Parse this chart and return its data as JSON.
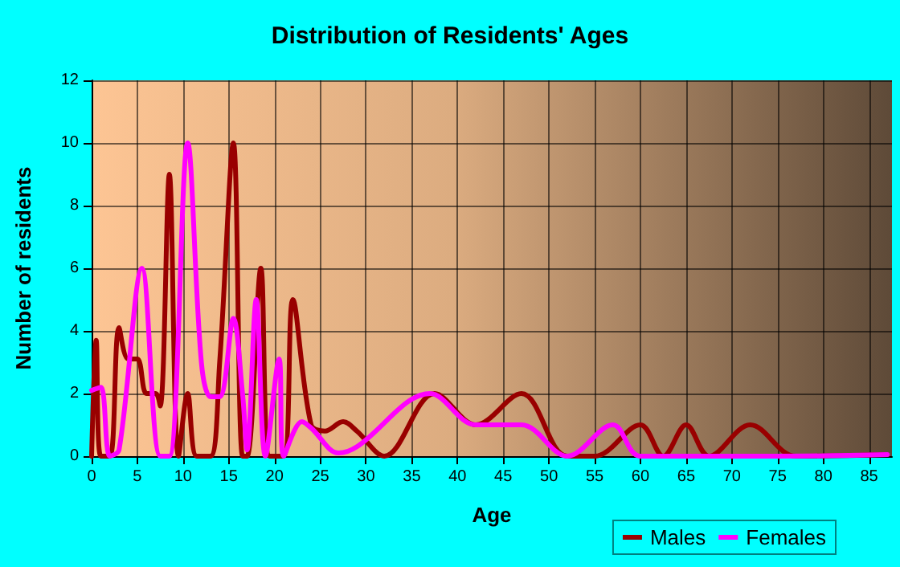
{
  "chart_data": {
    "type": "line",
    "title": "Distribution of Residents' Ages",
    "xlabel": "Age",
    "ylabel": "Number of residents",
    "xlim": [
      0,
      87.5
    ],
    "xticks": [
      0,
      5,
      10,
      15,
      20,
      25,
      30,
      35,
      40,
      45,
      50,
      55,
      60,
      65,
      70,
      75,
      80,
      85
    ],
    "ylim": [
      0,
      12
    ],
    "yticks": [
      0,
      2,
      4,
      6,
      8,
      10,
      12
    ],
    "grid": true,
    "legend": "bottom",
    "marker": "none",
    "line_style": "solid",
    "series": [
      {
        "name": "Males",
        "color": "#990000",
        "x": [
          0,
          0.5,
          1,
          2,
          3,
          4,
          5,
          6,
          7,
          7.5,
          8.5,
          9.5,
          10.5,
          11.5,
          13,
          14,
          15.5,
          16.5,
          17,
          18.5,
          19.5,
          21,
          22,
          24,
          25.5,
          27.5,
          29,
          32,
          37.5,
          42,
          47,
          52,
          55,
          60,
          62.5,
          65,
          67.5,
          72,
          77,
          87
        ],
        "values": [
          0,
          3.7,
          0,
          0,
          4.1,
          3.1,
          3.1,
          2,
          2,
          1.6,
          9,
          0,
          2,
          0,
          0,
          3,
          10,
          0,
          0,
          6,
          0,
          0,
          5,
          1,
          0.8,
          1.1,
          0.8,
          0,
          2,
          1,
          2,
          0,
          0,
          1,
          0,
          1,
          0,
          1,
          0,
          0.05
        ]
      },
      {
        "name": "Females",
        "color": "#ff00ff",
        "x": [
          0,
          1,
          2,
          3,
          5.5,
          7.5,
          8.5,
          10.5,
          12,
          13,
          14,
          15.5,
          16.5,
          17,
          18,
          19,
          20.5,
          21,
          23,
          24,
          27,
          29,
          37,
          42,
          47,
          52,
          57,
          60,
          75,
          87
        ],
        "values": [
          2.1,
          2.2,
          0,
          0.2,
          6,
          0,
          0,
          10,
          3,
          1.9,
          1.9,
          4.4,
          2,
          0.2,
          5,
          0,
          3.1,
          0,
          1.1,
          0.9,
          0.1,
          0.3,
          2,
          1,
          1,
          0,
          1,
          0,
          0,
          0.05
        ]
      }
    ]
  }
}
